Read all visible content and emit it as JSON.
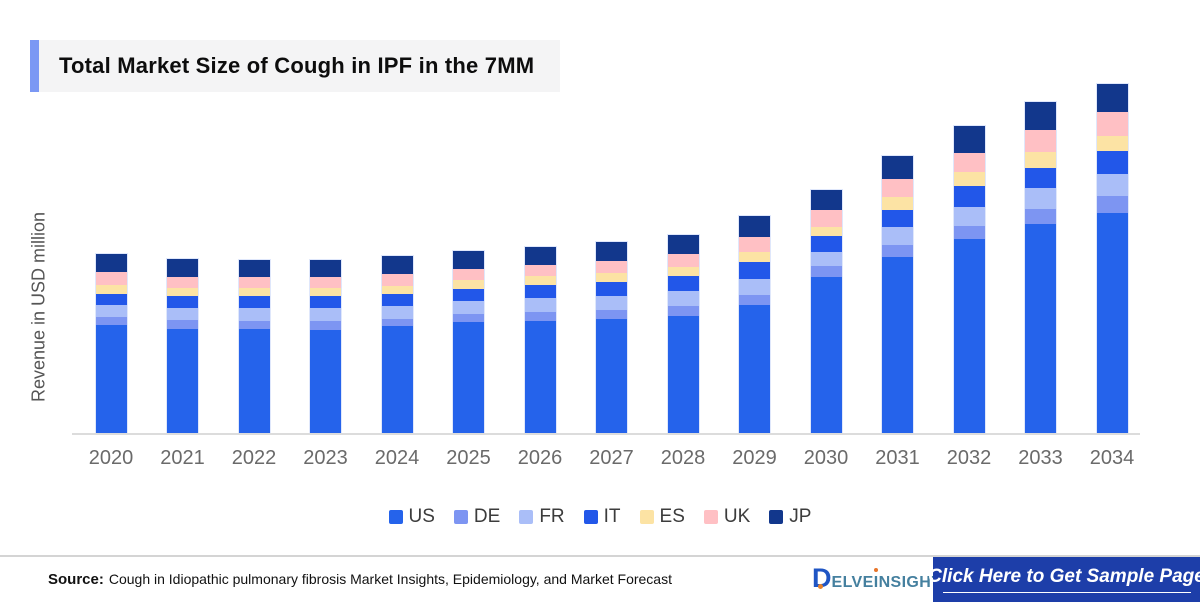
{
  "title": "Total Market Size of Cough in IPF in the 7MM",
  "chart_data": {
    "type": "bar",
    "stacked": true,
    "title": "Total Market Size of Cough in IPF in the 7MM",
    "xlabel": "",
    "ylabel": "Revenue in USD million",
    "ylim": [
      0,
      360
    ],
    "grid": false,
    "legend_position": "bottom",
    "categories": [
      "2020",
      "2021",
      "2022",
      "2023",
      "2024",
      "2025",
      "2026",
      "2027",
      "2028",
      "2029",
      "2030",
      "2031",
      "2032",
      "2033",
      "2034"
    ],
    "series": [
      {
        "name": "US",
        "color": "#2563eb",
        "values": [
          109,
          105,
          105,
          104,
          108,
          112,
          113,
          115,
          118,
          129,
          157,
          177,
          195,
          210,
          221
        ]
      },
      {
        "name": "DE",
        "color": "#7d95f2",
        "values": [
          8,
          9,
          8,
          9,
          7,
          8,
          9,
          9,
          10,
          10,
          11,
          12,
          13,
          15,
          17
        ]
      },
      {
        "name": "FR",
        "color": "#aabef8",
        "values": [
          12,
          12,
          13,
          13,
          13,
          13,
          14,
          14,
          15,
          16,
          14,
          18,
          19,
          21,
          22
        ]
      },
      {
        "name": "IT",
        "color": "#2257e9",
        "values": [
          11,
          12,
          12,
          12,
          12,
          12,
          13,
          14,
          15,
          17,
          16,
          17,
          21,
          20,
          23
        ]
      },
      {
        "name": "ES",
        "color": "#fce3a4",
        "values": [
          9,
          8,
          8,
          8,
          8,
          9,
          9,
          9,
          9,
          10,
          9,
          13,
          14,
          16,
          15
        ]
      },
      {
        "name": "UK",
        "color": "#ffc0c4",
        "values": [
          13,
          11,
          11,
          11,
          12,
          11,
          11,
          12,
          13,
          15,
          17,
          18,
          19,
          22,
          24
        ]
      },
      {
        "name": "JP",
        "color": "#12378c",
        "values": [
          18,
          18,
          17,
          17,
          18,
          18,
          18,
          19,
          19,
          21,
          20,
          23,
          27,
          28,
          28
        ]
      }
    ],
    "totals": [
      180,
      175,
      174,
      174,
      178,
      183,
      187,
      192,
      199,
      218,
      244,
      278,
      308,
      332,
      350
    ]
  },
  "footer": {
    "source_label": "Source:",
    "source_text": "Cough in Idiopathic pulmonary fibrosis Market Insights, Epidemiology, and Market Forecast",
    "cta_label": "Click Here to Get Sample Page"
  },
  "logo": {
    "d": "D",
    "part1": "ELVE",
    "i": "I",
    "part2": "NSIGHT"
  },
  "colors": {
    "title_accent": "#7b98f4",
    "title_bg": "#f4f4f5",
    "cta_bg": "#1d3ea9",
    "axis_line": "#dcdcdc",
    "logo_blue": "#1f55c4",
    "logo_teal": "#45809f",
    "logo_dot_orange": "#e8752a"
  }
}
